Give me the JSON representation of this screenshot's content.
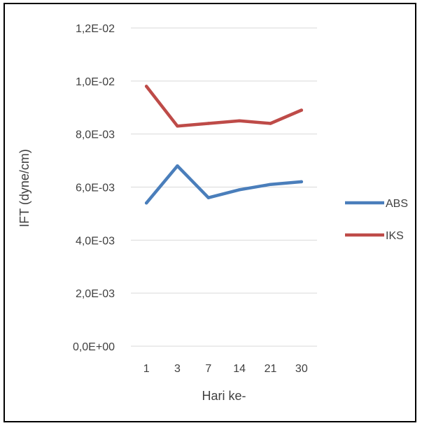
{
  "chart_data": {
    "type": "line",
    "title": "",
    "xlabel": "Hari ke-",
    "ylabel": "IFT (dyne/cm)",
    "categories": [
      "1",
      "3",
      "7",
      "14",
      "21",
      "30"
    ],
    "ylim": [
      0,
      0.012
    ],
    "yticks": [
      {
        "value": 0,
        "label": "0,0E+00"
      },
      {
        "value": 0.002,
        "label": "2,0E-03"
      },
      {
        "value": 0.004,
        "label": "4,0E-03"
      },
      {
        "value": 0.006,
        "label": "6,0E-03"
      },
      {
        "value": 0.008,
        "label": "8,0E-03"
      },
      {
        "value": 0.01,
        "label": "1,0E-02"
      },
      {
        "value": 0.012,
        "label": "1,2E-02"
      }
    ],
    "grid": true,
    "legend_position": "right",
    "series": [
      {
        "name": "ABS",
        "color": "#4a7ebb",
        "values": [
          0.0054,
          0.0068,
          0.0056,
          0.0059,
          0.0061,
          0.0062
        ]
      },
      {
        "name": "IKS",
        "color": "#be4b48",
        "values": [
          0.0098,
          0.0083,
          0.0084,
          0.0085,
          0.0084,
          0.0089
        ]
      }
    ]
  }
}
